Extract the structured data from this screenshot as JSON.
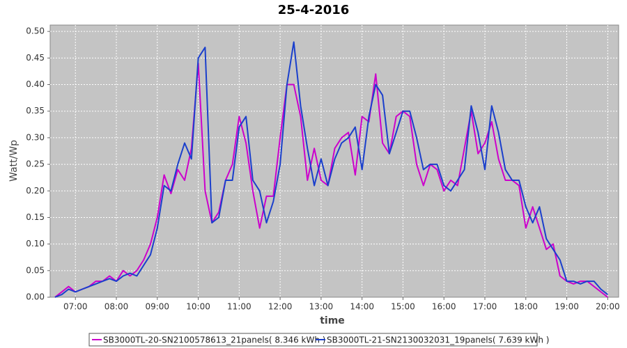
{
  "chart_data": {
    "type": "line",
    "title": "25-4-2016",
    "xlabel": "time",
    "ylabel": "Watt/Wp",
    "x": [
      "06:30",
      "06:40",
      "06:50",
      "07:00",
      "07:10",
      "07:20",
      "07:30",
      "07:40",
      "07:50",
      "08:00",
      "08:10",
      "08:20",
      "08:30",
      "08:40",
      "08:50",
      "09:00",
      "09:10",
      "09:20",
      "09:30",
      "09:40",
      "09:50",
      "10:00",
      "10:10",
      "10:20",
      "10:30",
      "10:40",
      "10:50",
      "11:00",
      "11:10",
      "11:20",
      "11:30",
      "11:40",
      "11:50",
      "12:00",
      "12:10",
      "12:20",
      "12:30",
      "12:40",
      "12:50",
      "13:00",
      "13:10",
      "13:20",
      "13:30",
      "13:40",
      "13:50",
      "14:00",
      "14:10",
      "14:20",
      "14:30",
      "14:40",
      "14:50",
      "15:00",
      "15:10",
      "15:20",
      "15:30",
      "15:40",
      "15:50",
      "16:00",
      "16:10",
      "16:20",
      "16:30",
      "16:40",
      "16:50",
      "17:00",
      "17:10",
      "17:20",
      "17:30",
      "17:40",
      "17:50",
      "18:00",
      "18:10",
      "18:20",
      "18:30",
      "18:40",
      "18:50",
      "19:00",
      "19:10",
      "19:20",
      "19:30",
      "19:40",
      "19:50",
      "20:00"
    ],
    "series": [
      {
        "name": "SB3000TL-20-SN2100578613_21panels( 8.346 kWh )",
        "color": "#cc00cc",
        "values": [
          0,
          0.01,
          0.02,
          0.01,
          0.015,
          0.02,
          0.03,
          0.03,
          0.04,
          0.03,
          0.05,
          0.04,
          0.05,
          0.07,
          0.1,
          0.15,
          0.23,
          0.195,
          0.24,
          0.22,
          0.28,
          0.44,
          0.2,
          0.14,
          0.16,
          0.22,
          0.25,
          0.34,
          0.29,
          0.2,
          0.13,
          0.19,
          0.19,
          0.3,
          0.4,
          0.4,
          0.34,
          0.22,
          0.28,
          0.22,
          0.21,
          0.28,
          0.3,
          0.31,
          0.23,
          0.34,
          0.33,
          0.42,
          0.29,
          0.27,
          0.34,
          0.35,
          0.34,
          0.25,
          0.21,
          0.25,
          0.24,
          0.2,
          0.22,
          0.21,
          0.28,
          0.35,
          0.27,
          0.29,
          0.33,
          0.26,
          0.22,
          0.22,
          0.21,
          0.13,
          0.17,
          0.13,
          0.09,
          0.1,
          0.04,
          0.03,
          0.025,
          0.03,
          0.03,
          0.02,
          0.01,
          0
        ]
      },
      {
        "name": "SB3000TL-21-SN2130032031_19panels( 7.639 kWh )",
        "color": "#1a3fcc",
        "values": [
          0,
          0.005,
          0.015,
          0.01,
          0.015,
          0.02,
          0.025,
          0.03,
          0.035,
          0.03,
          0.04,
          0.045,
          0.04,
          0.06,
          0.08,
          0.13,
          0.21,
          0.2,
          0.25,
          0.29,
          0.26,
          0.45,
          0.47,
          0.14,
          0.15,
          0.22,
          0.22,
          0.32,
          0.34,
          0.22,
          0.2,
          0.14,
          0.18,
          0.25,
          0.4,
          0.48,
          0.36,
          0.28,
          0.21,
          0.26,
          0.21,
          0.26,
          0.29,
          0.3,
          0.32,
          0.24,
          0.34,
          0.4,
          0.38,
          0.27,
          0.31,
          0.35,
          0.35,
          0.3,
          0.24,
          0.25,
          0.25,
          0.21,
          0.2,
          0.22,
          0.24,
          0.36,
          0.31,
          0.24,
          0.36,
          0.31,
          0.24,
          0.22,
          0.22,
          0.17,
          0.14,
          0.17,
          0.11,
          0.09,
          0.07,
          0.03,
          0.03,
          0.025,
          0.03,
          0.03,
          0.015,
          0.005
        ]
      }
    ],
    "xlim": [
      "06:23",
      "20:16"
    ],
    "xticks": [
      "07:00",
      "08:00",
      "09:00",
      "10:00",
      "11:00",
      "12:00",
      "13:00",
      "14:00",
      "15:00",
      "16:00",
      "17:00",
      "18:00",
      "19:00",
      "20:00"
    ],
    "ylim": [
      0,
      0.512
    ],
    "yticks": [
      {
        "value": 0,
        "label": "0.00"
      },
      {
        "value": 0.05,
        "label": "0.05"
      },
      {
        "value": 0.1,
        "label": "0.10"
      },
      {
        "value": 0.15,
        "label": "0.15"
      },
      {
        "value": 0.2,
        "label": "0.20"
      },
      {
        "value": 0.25,
        "label": "0.25"
      },
      {
        "value": 0.3,
        "label": "0.30"
      },
      {
        "value": 0.35,
        "label": "0.35"
      },
      {
        "value": 0.4,
        "label": "0.40"
      },
      {
        "value": 0.45,
        "label": "0.45"
      },
      {
        "value": 0.5,
        "label": "0.50"
      }
    ],
    "grid": true
  }
}
